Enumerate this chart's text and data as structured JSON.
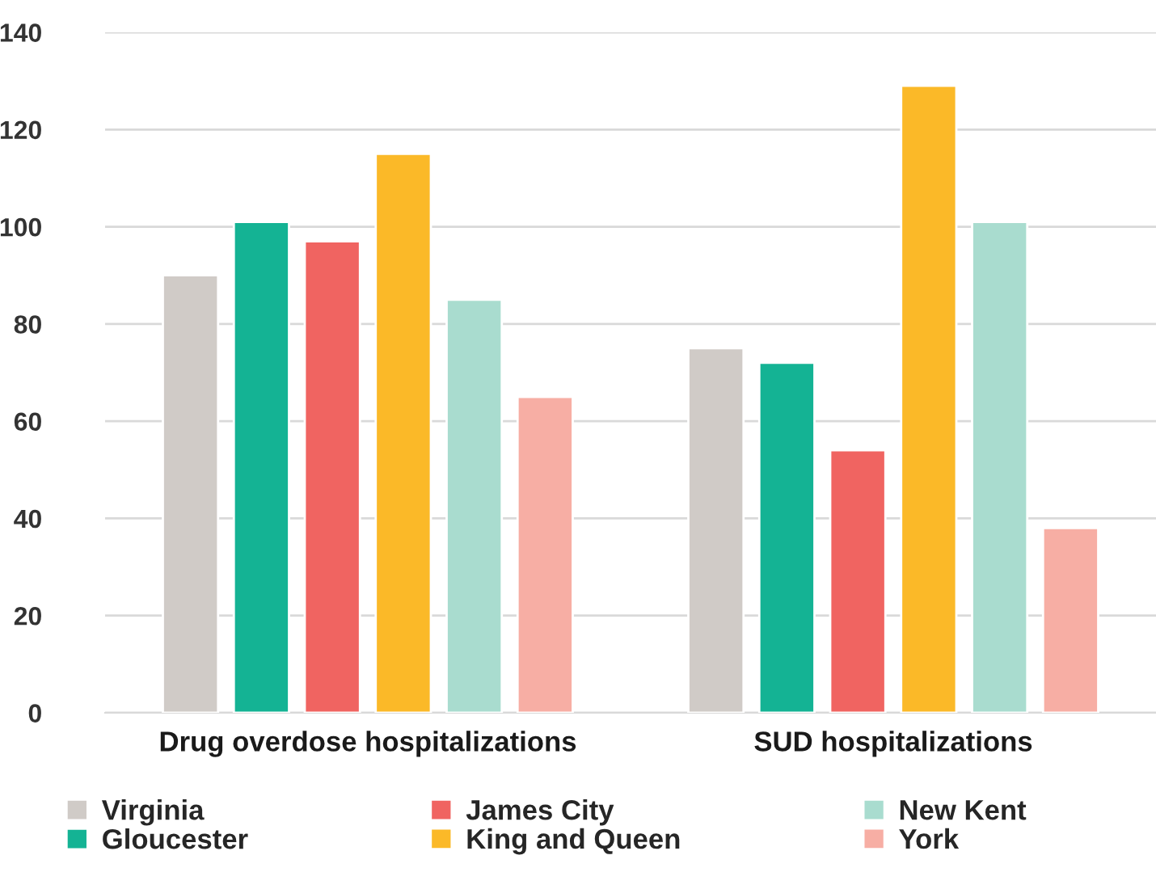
{
  "chart_data": {
    "type": "bar",
    "categories": [
      "Drug overdose hospitalizations",
      "SUD hospitalizations"
    ],
    "series": [
      {
        "name": "Virginia",
        "color": "#d0cbc7",
        "values": [
          90,
          75
        ]
      },
      {
        "name": "Gloucester",
        "color": "#14b394",
        "values": [
          101,
          72
        ]
      },
      {
        "name": "James City",
        "color": "#f06461",
        "values": [
          97,
          54
        ]
      },
      {
        "name": "King and Queen",
        "color": "#fbb928",
        "values": [
          115,
          129
        ]
      },
      {
        "name": "New Kent",
        "color": "#a9dccf",
        "values": [
          85,
          101
        ]
      },
      {
        "name": "York",
        "color": "#f7aea4",
        "values": [
          65,
          38
        ]
      }
    ],
    "ylim": [
      0,
      140
    ],
    "yticks": [
      0,
      20,
      40,
      60,
      80,
      100,
      120,
      140
    ],
    "grid": "y",
    "legend": "bottom"
  }
}
